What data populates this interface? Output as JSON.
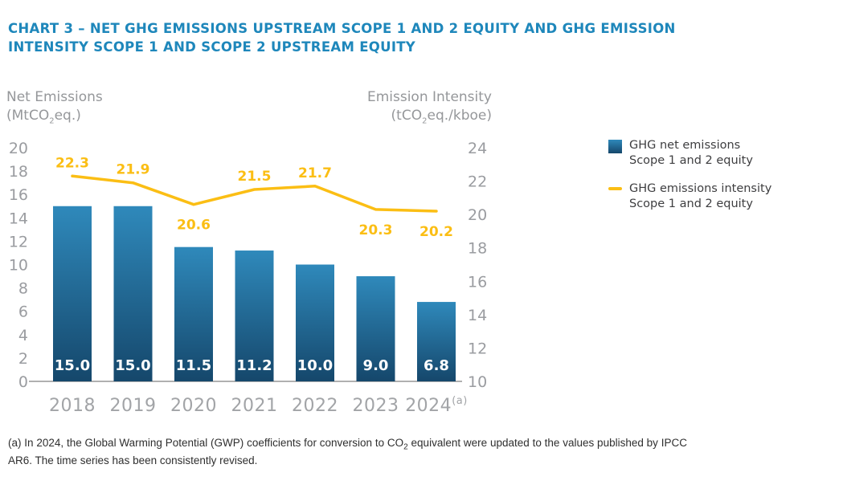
{
  "title": {
    "text": "CHART 3 – NET GHG EMISSIONS UPSTREAM SCOPE 1 AND 2 EQUITY AND GHG EMISSION INTENSITY SCOPE 1 AND SCOPE 2 UPSTREAM EQUITY"
  },
  "axis_titles": {
    "left_line1": "Net Emissions",
    "left_unit_prefix": "(MtCO",
    "left_unit_sub": "2",
    "left_unit_suffix": "eq.)",
    "right_line1": "Emission Intensity",
    "right_unit_prefix": "(tCO",
    "right_unit_sub": "2",
    "right_unit_suffix": "eq./kboe)"
  },
  "chart_data": {
    "type": "combo",
    "categories": [
      "2018",
      "2019",
      "2020",
      "2021",
      "2022",
      "2023",
      "2024"
    ],
    "category_superscripts": [
      "",
      "",
      "",
      "",
      "",
      "",
      "(a)"
    ],
    "series": [
      {
        "name": "GHG net emissions Scope 1 and 2 equity",
        "type": "bar",
        "axis": "left",
        "values": [
          15.0,
          15.0,
          11.5,
          11.2,
          10.0,
          9.0,
          6.8
        ],
        "value_labels": [
          "15.0",
          "15.0",
          "11.5",
          "11.2",
          "10.0",
          "9.0",
          "6.8"
        ],
        "color_top": "#2F89BB",
        "color_bottom": "#15476B"
      },
      {
        "name": "GHG emissions intensity Scope 1 and 2 equity",
        "type": "line",
        "axis": "right",
        "values": [
          22.3,
          21.9,
          20.6,
          21.5,
          21.7,
          20.3,
          20.2
        ],
        "value_labels": [
          "22.3",
          "21.9",
          "20.6",
          "21.5",
          "21.7",
          "20.3",
          "20.2"
        ],
        "label_positions": [
          "above",
          "above",
          "below",
          "above",
          "above",
          "below",
          "below"
        ],
        "color": "#FBBE14"
      }
    ],
    "left_axis": {
      "ylabel": "Net Emissions (MtCO2eq.)",
      "range": [
        0,
        20
      ],
      "tick_step": 2,
      "ticks": [
        0,
        2,
        4,
        6,
        8,
        10,
        12,
        14,
        16,
        18,
        20
      ]
    },
    "right_axis": {
      "ylabel": "Emission Intensity (tCO2eq./kboe)",
      "range": [
        10,
        24
      ],
      "tick_step": 2,
      "ticks": [
        10,
        12,
        14,
        16,
        18,
        20,
        22,
        24
      ]
    },
    "grid": false,
    "legend_position": "right"
  },
  "legend": {
    "items": [
      {
        "swatch": "bar",
        "label_line1": "GHG net emissions",
        "label_line2": "Scope 1 and 2 equity"
      },
      {
        "swatch": "line",
        "label_line1": "GHG emissions intensity",
        "label_line2": "Scope 1 and 2 equity"
      }
    ]
  },
  "footnote": {
    "prefix": "(a) In 2024, the Global Warming Potential (GWP) coefficients for conversion to CO",
    "sub": "2",
    "suffix": " equivalent were updated to the values published by IPCC AR6. The time series has been consistently revised."
  },
  "colors": {
    "title": "#1E87BB",
    "bar_top": "#2F89BB",
    "bar_bottom": "#15476B",
    "line": "#FBBE14",
    "tick_text": "#9A9CA0",
    "year_text": "#A2A4A7",
    "axis_title_text": "#95979A",
    "legend_text": "#3E3E40",
    "baseline": "#B0B0B0",
    "footnote_text": "#2F2F2F"
  }
}
